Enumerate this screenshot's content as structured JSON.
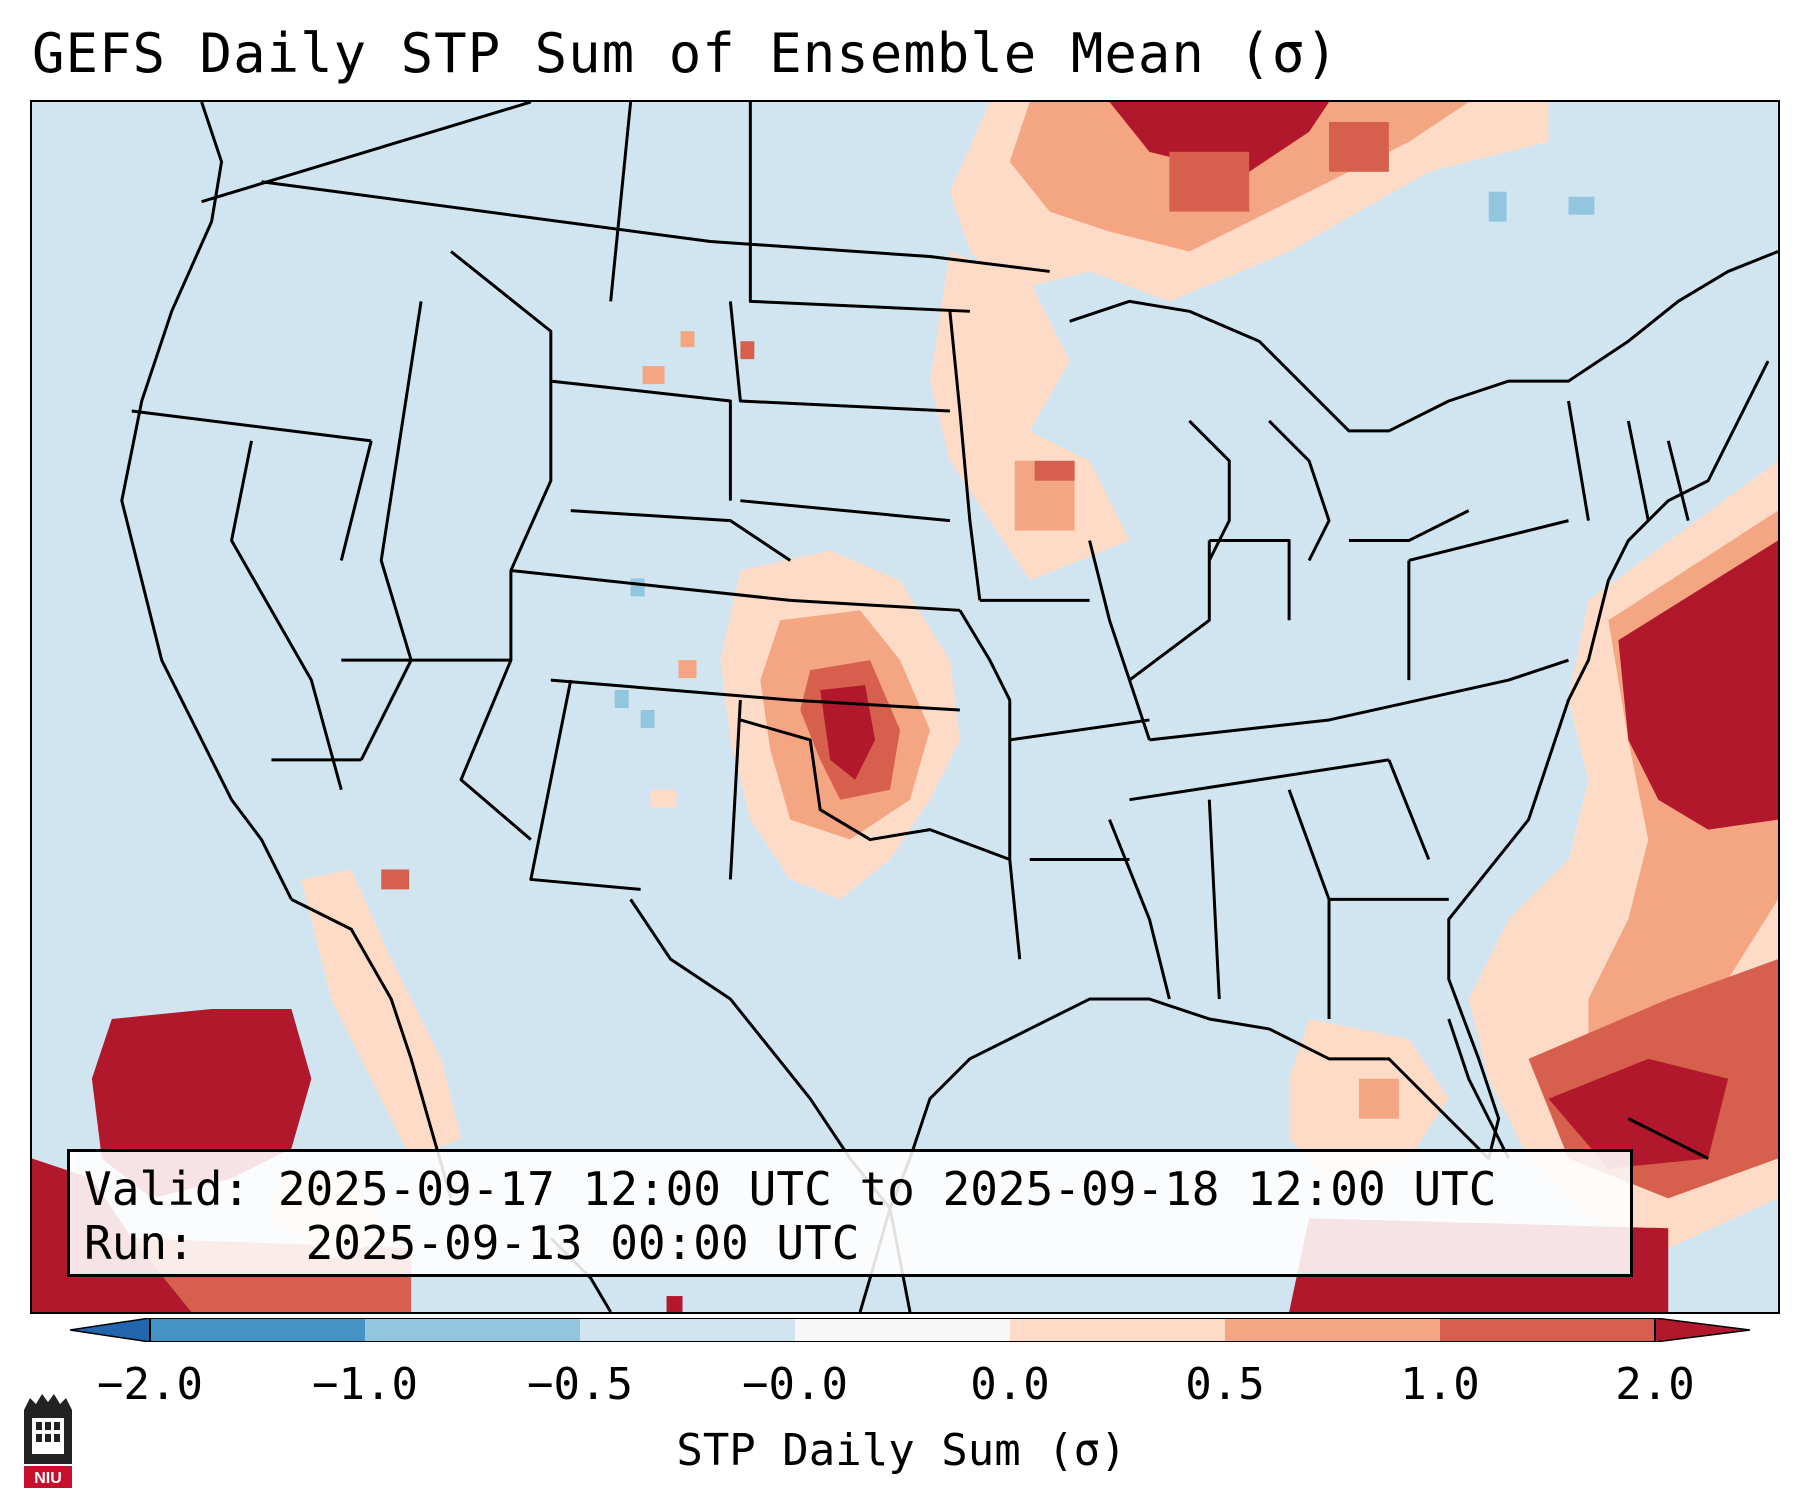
{
  "title": "GEFS Daily STP Sum of Ensemble Mean (σ)",
  "info": {
    "valid_label": "Valid:",
    "valid_value": "2025-09-17 12:00 UTC to 2025-09-18 12:00 UTC",
    "run_label": "Run:",
    "run_value": "2025-09-13 00:00 UTC"
  },
  "colorbar": {
    "label": "STP Daily Sum (σ)",
    "ticks": [
      "−2.0",
      "−1.0",
      "−0.5",
      "−0.0",
      "0.0",
      "0.5",
      "1.0",
      "2.0"
    ],
    "colors": [
      "#4393c3",
      "#92c5de",
      "#d1e5f0",
      "#f7f7f7",
      "#fddbc7",
      "#f4a582",
      "#d6604d",
      "#b2182b"
    ],
    "extend": "both"
  },
  "map": {
    "region": "Contiguous United States",
    "background_color": "#d1e5f0"
  },
  "logo": {
    "text": "NIU"
  }
}
